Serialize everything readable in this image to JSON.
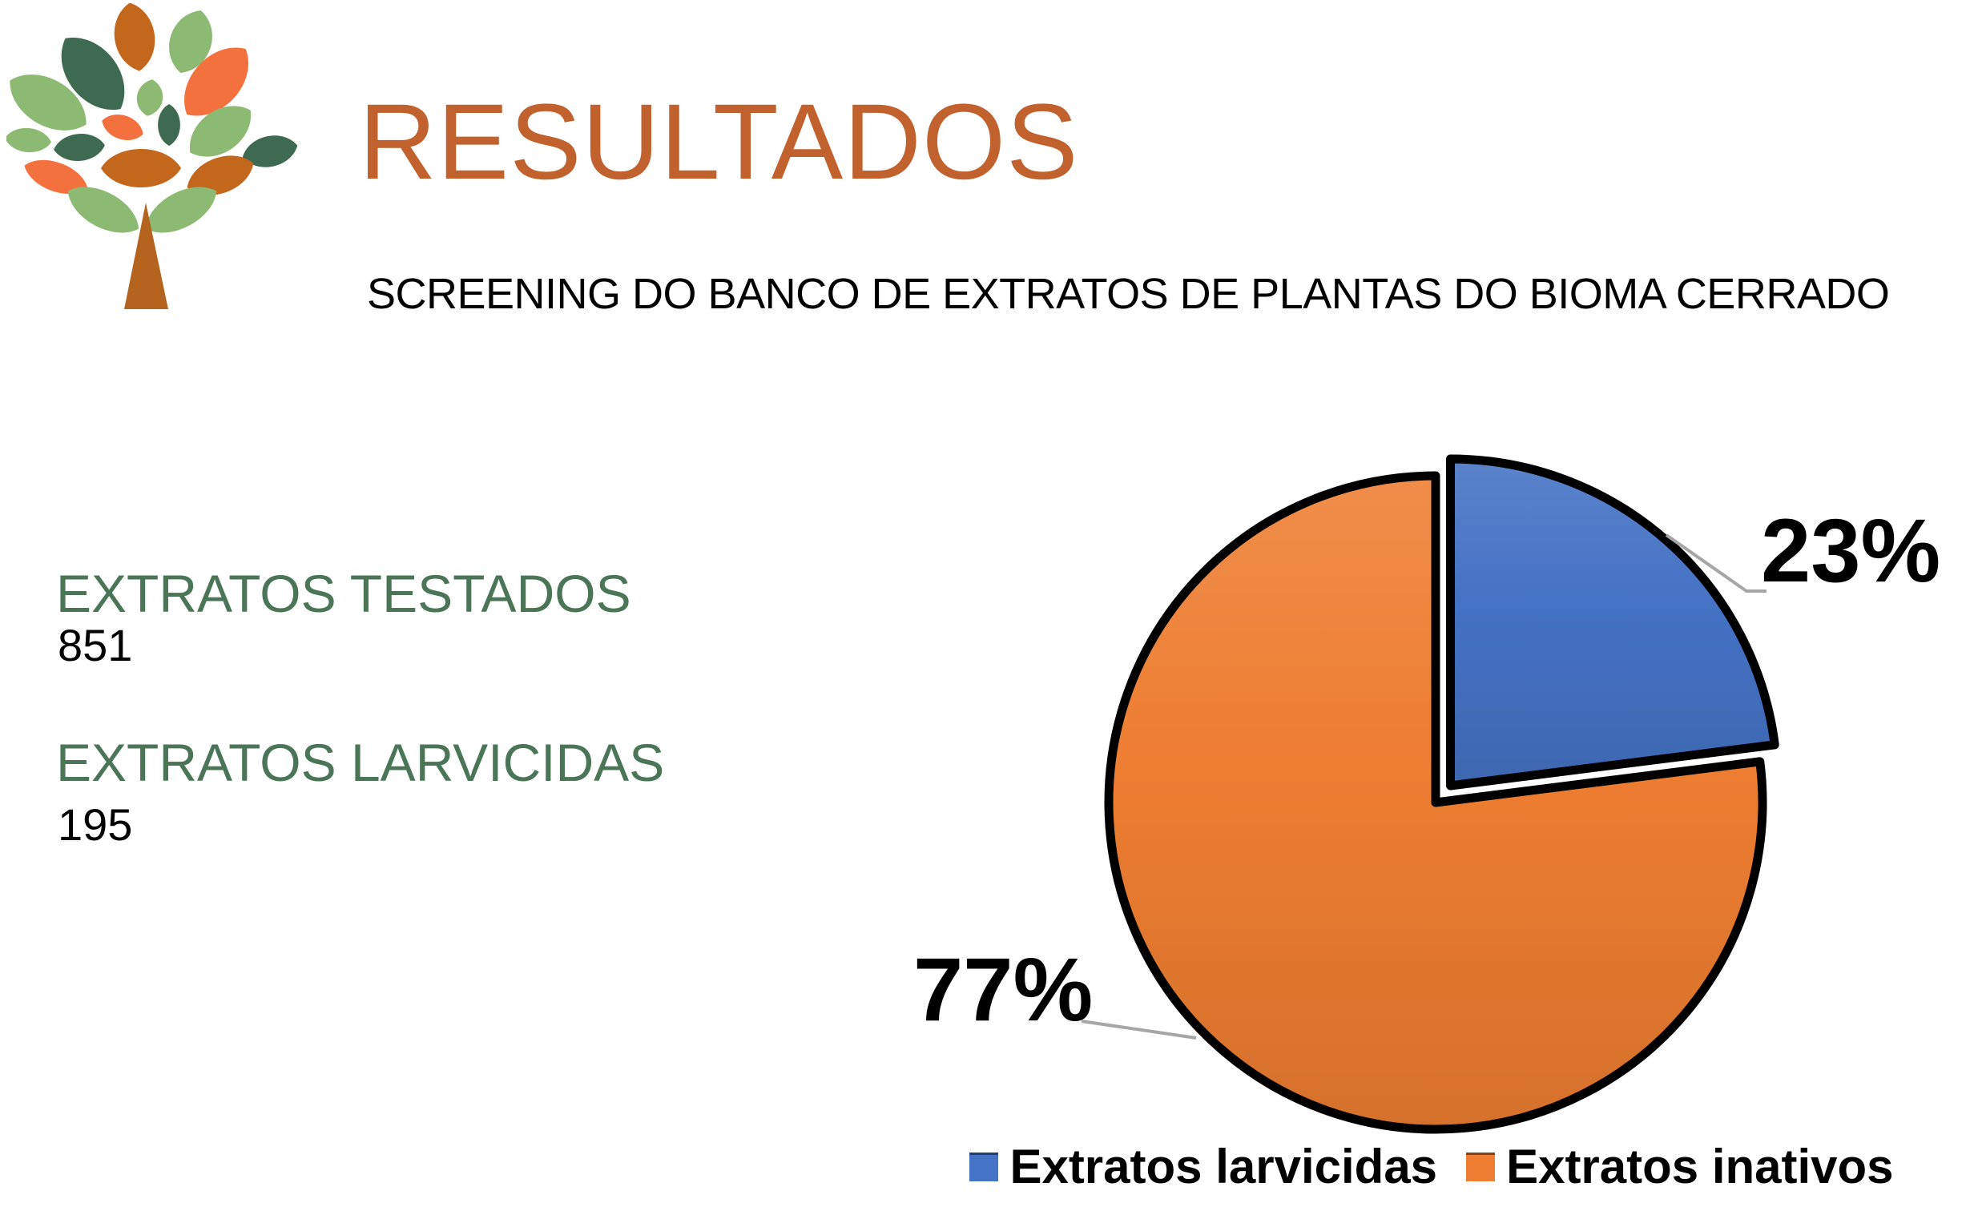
{
  "slide": {
    "title": "RESULTADOS",
    "subtitle": "SCREENING DO BANCO DE EXTRATOS DE PLANTAS DO BIOMA CERRADO"
  },
  "stats": {
    "tested_label": "EXTRATOS TESTADOS",
    "tested_value": "851",
    "larvicidal_label": "EXTRATOS LARVICIDAS",
    "larvicidal_value": "195"
  },
  "theme": {
    "title_color": "#C0612E",
    "stat_label_color": "#4A7557",
    "leader_line_color": "#A6A6A6",
    "logo_palette": {
      "dark_green": "#3D6A50",
      "light_green": "#8CBA72",
      "coral": "#F3713E",
      "ochre": "#C2671C",
      "trunk": "#B4641E"
    }
  },
  "chart_data": {
    "type": "pie",
    "title": "",
    "categories": [
      "Extratos larvicidas",
      "Extratos inativos"
    ],
    "values": [
      23,
      77
    ],
    "labels": [
      "23%",
      "77%"
    ],
    "colors": [
      "#4472C4",
      "#ED7D31"
    ],
    "start_angle_deg": -90,
    "direction": "clockwise",
    "exploded_slice_index": 0,
    "legend_position": "bottom"
  }
}
